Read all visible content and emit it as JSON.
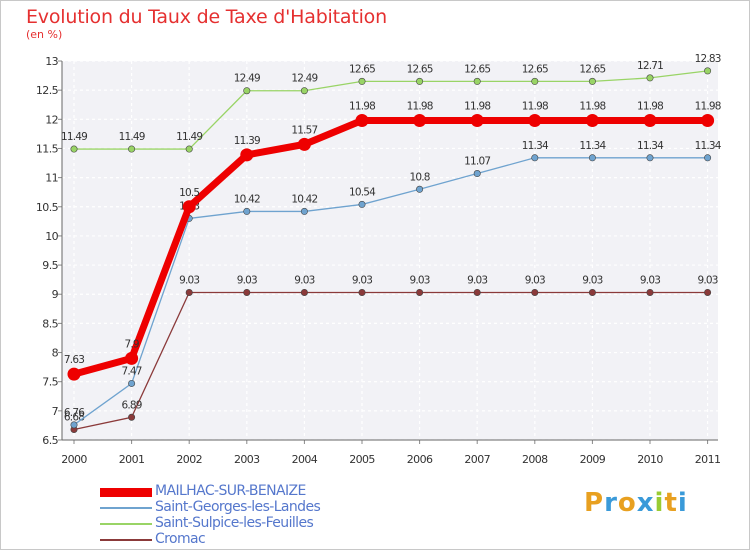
{
  "title": "Evolution du Taux de Taxe d'Habitation",
  "subtitle": "(en %)",
  "chart_data": {
    "type": "line",
    "x": [
      "2000",
      "2001",
      "2002",
      "2003",
      "2004",
      "2005",
      "2006",
      "2007",
      "2008",
      "2009",
      "2010",
      "2011"
    ],
    "ylim": [
      6.5,
      13
    ],
    "yticks": [
      "6.5",
      "7",
      "7.5",
      "8",
      "8.5",
      "9",
      "9.5",
      "10",
      "10.5",
      "11",
      "11.5",
      "12",
      "12.5",
      "13"
    ],
    "grid": true,
    "legend_position": "bottom-left",
    "series": [
      {
        "name": "MAILHAC-SUR-BENAIZE",
        "color": "#ee0000",
        "values": [
          7.63,
          7.9,
          10.5,
          11.39,
          11.57,
          11.98,
          11.98,
          11.98,
          11.98,
          11.98,
          11.98,
          11.98
        ],
        "labels": [
          "7.63",
          "7.9",
          "10.5",
          "11.39",
          "11.57",
          "11.98",
          "11.98",
          "11.98",
          "11.98",
          "11.98",
          "11.98",
          "11.98"
        ]
      },
      {
        "name": "Saint-Georges-les-Landes",
        "color": "#6fa3cf",
        "values": [
          6.76,
          7.47,
          10.3,
          10.42,
          10.42,
          10.54,
          10.8,
          11.07,
          11.34,
          11.34,
          11.34,
          11.34
        ],
        "labels": [
          "6.76",
          "7.47",
          "10.3",
          "10.42",
          "10.42",
          "10.54",
          "10.8",
          "11.07",
          "11.34",
          "11.34",
          "11.34",
          "11.34"
        ]
      },
      {
        "name": "Saint-Sulpice-les-Feuilles",
        "color": "#99d466",
        "values": [
          11.49,
          11.49,
          11.49,
          12.49,
          12.49,
          12.65,
          12.65,
          12.65,
          12.65,
          12.65,
          12.71,
          12.83
        ],
        "labels": [
          "11.49",
          "11.49",
          "11.49",
          "12.49",
          "12.49",
          "12.65",
          "12.65",
          "12.65",
          "12.65",
          "12.65",
          "12.71",
          "12.83"
        ]
      },
      {
        "name": "Cromac",
        "color": "#8b3a3a",
        "values": [
          6.68,
          6.89,
          9.03,
          9.03,
          9.03,
          9.03,
          9.03,
          9.03,
          9.03,
          9.03,
          9.03,
          9.03
        ],
        "labels": [
          "6.68",
          "6.89",
          "9.03",
          "9.03",
          "9.03",
          "9.03",
          "9.03",
          "9.03",
          "9.03",
          "9.03",
          "9.03",
          "9.03"
        ]
      }
    ]
  },
  "logo": {
    "text": "Proxiti",
    "letters": [
      "P",
      "r",
      "o",
      "x",
      "i",
      "t",
      "i"
    ],
    "colors": [
      "#e8a020",
      "#3a9ad9",
      "#e8a020",
      "#3a9ad9",
      "#99cc33",
      "#e8a020",
      "#3a9ad9"
    ]
  }
}
